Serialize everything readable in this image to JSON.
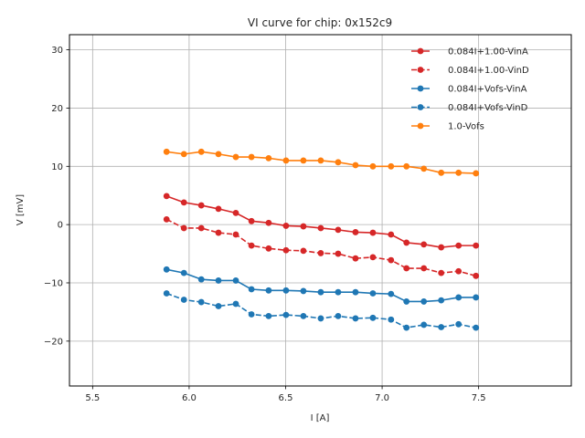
{
  "chart_data": {
    "type": "line",
    "title": "VI curve for chip: 0x152c9",
    "xlabel": "I [A]",
    "ylabel": "V [mV]",
    "xlim": [
      5.38,
      7.98
    ],
    "ylim": [
      -27.7,
      32.6
    ],
    "xticks": [
      5.5,
      6.0,
      6.5,
      7.0,
      7.5
    ],
    "xtick_labels": [
      "5.5",
      "6.0",
      "6.5",
      "7.0",
      "7.5"
    ],
    "yticks": [
      -20,
      -10,
      0,
      10,
      20,
      30
    ],
    "ytick_labels": [
      "−20",
      "−10",
      "0",
      "10",
      "20",
      "30"
    ],
    "grid": true,
    "legend_position": "top-right",
    "x": [
      5.883,
      5.973,
      6.063,
      6.152,
      6.242,
      6.323,
      6.412,
      6.502,
      6.592,
      6.682,
      6.772,
      6.862,
      6.952,
      7.046,
      7.126,
      7.216,
      7.306,
      7.396,
      7.486
    ],
    "series": [
      {
        "name": "0.084I+1.00-VinA",
        "color": "#d62728",
        "linestyle": "solid",
        "values": [
          4.9,
          3.8,
          3.3,
          2.7,
          2.0,
          0.6,
          0.3,
          -0.2,
          -0.3,
          -0.6,
          -0.9,
          -1.3,
          -1.4,
          -1.7,
          -3.1,
          -3.4,
          -3.9,
          -3.6,
          -3.6
        ]
      },
      {
        "name": "0.084I+1.00-VinD",
        "color": "#d62728",
        "linestyle": "dashed",
        "values": [
          0.9,
          -0.6,
          -0.6,
          -1.4,
          -1.7,
          -3.6,
          -4.1,
          -4.4,
          -4.5,
          -4.9,
          -5.0,
          -5.8,
          -5.6,
          -6.1,
          -7.5,
          -7.5,
          -8.3,
          -8.0,
          -8.8
        ]
      },
      {
        "name": "0.084I+Vofs-VinA",
        "color": "#1f77b4",
        "linestyle": "solid",
        "values": [
          -7.7,
          -8.3,
          -9.4,
          -9.6,
          -9.6,
          -11.1,
          -11.3,
          -11.3,
          -11.4,
          -11.6,
          -11.6,
          -11.6,
          -11.8,
          -11.9,
          -13.2,
          -13.2,
          -13.0,
          -12.5,
          -12.5
        ]
      },
      {
        "name": "0.084I+Vofs-VinD",
        "color": "#1f77b4",
        "linestyle": "dashed",
        "values": [
          -11.8,
          -12.9,
          -13.3,
          -14.0,
          -13.6,
          -15.4,
          -15.7,
          -15.5,
          -15.7,
          -16.1,
          -15.7,
          -16.1,
          -16.0,
          -16.3,
          -17.7,
          -17.2,
          -17.6,
          -17.1,
          -17.7
        ]
      },
      {
        "name": "1.0-Vofs",
        "color": "#ff7f0e",
        "linestyle": "solid",
        "values": [
          12.5,
          12.1,
          12.5,
          12.1,
          11.6,
          11.6,
          11.4,
          11.0,
          11.0,
          11.0,
          10.7,
          10.2,
          10.0,
          10.0,
          10.0,
          9.6,
          8.9,
          8.9,
          8.8
        ]
      }
    ]
  }
}
